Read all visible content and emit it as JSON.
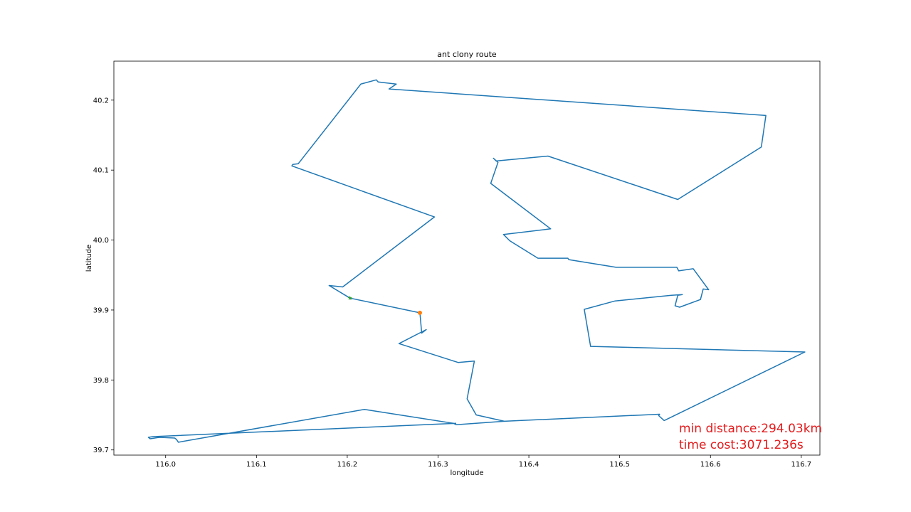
{
  "chart_data": {
    "type": "line",
    "title": "ant clony route",
    "xlabel": "longitude",
    "ylabel": "latitude",
    "xlim": [
      115.943,
      116.7205
    ],
    "ylim": [
      39.6926,
      40.2557
    ],
    "xticks": [
      116.0,
      116.1,
      116.2,
      116.3,
      116.4,
      116.5,
      116.6,
      116.7
    ],
    "xtick_labels": [
      "116.0",
      "116.1",
      "116.2",
      "116.3",
      "116.4",
      "116.5",
      "116.6",
      "116.7"
    ],
    "yticks": [
      39.7,
      39.8,
      39.9,
      40.0,
      40.1,
      40.2
    ],
    "ytick_labels": [
      "39.7",
      "39.8",
      "39.9",
      "40.0",
      "40.1",
      "40.2"
    ],
    "grid": false,
    "line_color": "#1f77b4",
    "series": [
      {
        "values": [
          [
            116.203,
            39.917
          ],
          [
            116.18,
            39.935
          ],
          [
            116.195,
            39.933
          ],
          [
            116.296,
            40.033
          ],
          [
            116.139,
            40.106
          ],
          [
            116.14,
            40.108
          ],
          [
            116.146,
            40.109
          ],
          [
            116.215,
            40.223
          ],
          [
            116.232,
            40.229
          ],
          [
            116.234,
            40.226
          ],
          [
            116.254,
            40.223
          ],
          [
            116.246,
            40.216
          ],
          [
            116.661,
            40.178
          ],
          [
            116.656,
            40.133
          ],
          [
            116.564,
            40.058
          ],
          [
            116.421,
            40.12
          ],
          [
            116.364,
            40.113
          ],
          [
            116.361,
            40.117
          ],
          [
            116.366,
            40.111
          ],
          [
            116.358,
            40.081
          ],
          [
            116.424,
            40.016
          ],
          [
            116.372,
            40.008
          ],
          [
            116.379,
            39.999
          ],
          [
            116.41,
            39.974
          ],
          [
            116.443,
            39.974
          ],
          [
            116.444,
            39.972
          ],
          [
            116.496,
            39.961
          ],
          [
            116.563,
            39.961
          ],
          [
            116.565,
            39.956
          ],
          [
            116.581,
            39.959
          ],
          [
            116.598,
            39.929
          ],
          [
            116.592,
            39.93
          ],
          [
            116.589,
            39.915
          ],
          [
            116.566,
            39.904
          ],
          [
            116.561,
            39.906
          ],
          [
            116.564,
            39.921
          ],
          [
            116.569,
            39.922
          ],
          [
            116.557,
            39.921
          ],
          [
            116.495,
            39.913
          ],
          [
            116.461,
            39.901
          ],
          [
            116.468,
            39.848
          ],
          [
            116.704,
            39.84
          ],
          [
            116.549,
            39.742
          ],
          [
            116.543,
            39.749
          ],
          [
            116.544,
            39.751
          ],
          [
            116.373,
            39.741
          ],
          [
            116.342,
            39.75
          ],
          [
            116.332,
            39.773
          ],
          [
            116.34,
            39.827
          ],
          [
            116.322,
            39.825
          ],
          [
            116.257,
            39.852
          ],
          [
            116.287,
            39.872
          ],
          [
            116.282,
            39.867
          ],
          [
            116.28,
            39.896
          ],
          [
            116.203,
            39.917
          ]
        ]
      },
      {
        "values": [
          [
            116.373,
            39.741
          ],
          [
            116.32,
            39.736
          ],
          [
            116.317,
            39.738
          ],
          [
            116.219,
            39.758
          ],
          [
            116.014,
            39.711
          ],
          [
            116.012,
            39.715
          ],
          [
            116.01,
            39.717
          ],
          [
            115.993,
            39.718
          ],
          [
            115.983,
            39.716
          ],
          [
            115.981,
            39.718
          ],
          [
            115.986,
            39.719
          ],
          [
            116.32,
            39.738
          ]
        ]
      }
    ],
    "markers": [
      {
        "name": "start",
        "symbol": "star",
        "color": "#2ca02c",
        "x": 116.203,
        "y": 39.917
      },
      {
        "name": "end",
        "symbol": "circle",
        "color": "#ff7f0e",
        "x": 116.28,
        "y": 39.896
      }
    ],
    "annotations": {
      "color": "#e31a1c",
      "distance": "min distance:294.03km",
      "time": "time cost:3071.236s"
    }
  }
}
